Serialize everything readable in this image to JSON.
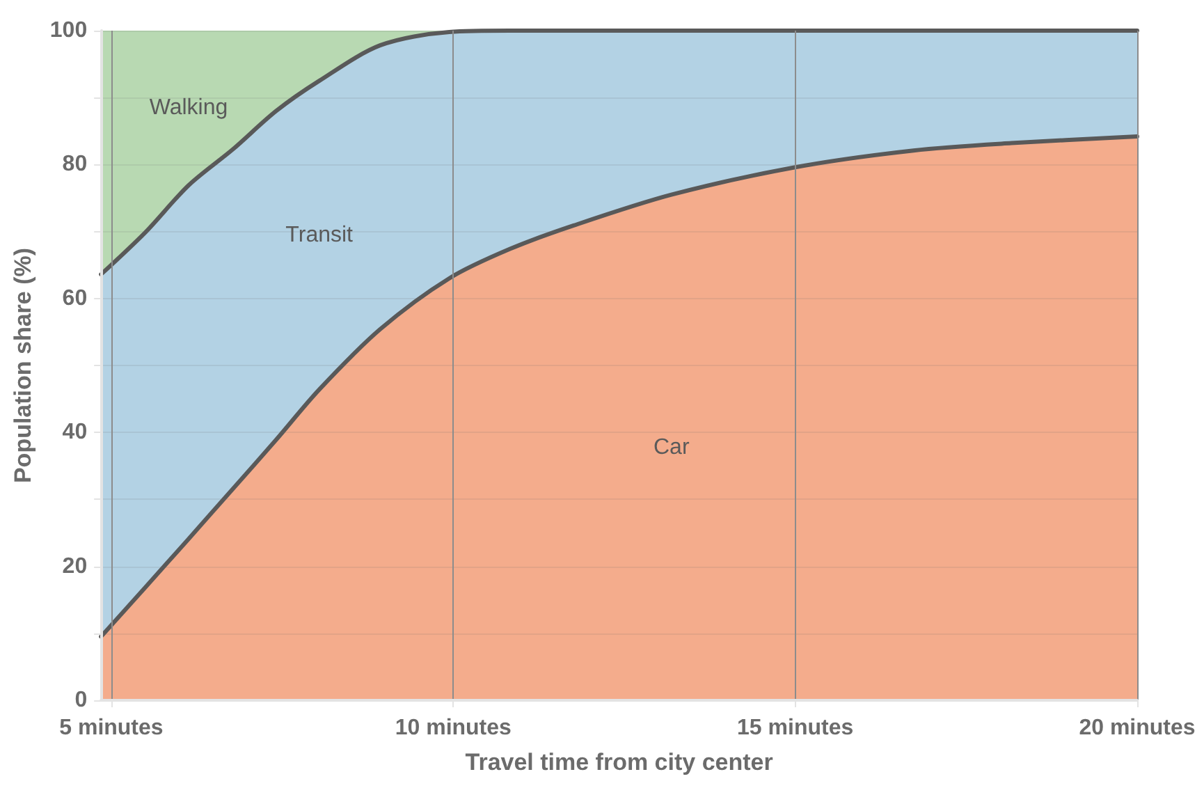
{
  "chart_data": {
    "type": "area",
    "stacked": true,
    "xlabel": "Travel time from city center",
    "ylabel": "Population share (%)",
    "x": [
      4.85,
      5.5,
      6.13,
      6.78,
      7.41,
      8.04,
      8.93,
      9.94,
      10.83,
      11.76,
      13.19,
      15,
      16.73,
      18.16,
      20
    ],
    "xlim": [
      4.85,
      20
    ],
    "xticks": [
      {
        "value": 5,
        "label": "5 minutes"
      },
      {
        "value": 10,
        "label": "10 minutes"
      },
      {
        "value": 15,
        "label": "15 minutes"
      },
      {
        "value": 20,
        "label": "20 minutes"
      }
    ],
    "ylim": [
      0,
      100
    ],
    "yticks": [
      0,
      {
        "value": 10,
        "label": null
      },
      20,
      {
        "value": 30,
        "label": null
      },
      40,
      {
        "value": 50,
        "label": null
      },
      60,
      {
        "value": 70,
        "label": null
      },
      80,
      {
        "value": 90,
        "label": null
      },
      100
    ],
    "grid": true,
    "series": [
      {
        "name": "Car",
        "color": "#f4ac8c",
        "values": [
          9.5,
          16.9,
          24.1,
          31.6,
          38.9,
          46.4,
          55.4,
          63,
          67.4,
          70.9,
          75.5,
          79.6,
          82.1,
          83.2,
          84.2
        ]
      },
      {
        "name": "Transit",
        "color": "#b3d2e4",
        "values": [
          54.1,
          53,
          52.8,
          50.7,
          49.1,
          46.1,
          42.4,
          36.8,
          32.6,
          29.1,
          24.5,
          20.4,
          17.9,
          16.8,
          15.8
        ]
      },
      {
        "name": "Walking",
        "color": "#b8d9b2",
        "values": [
          36.4,
          30.1,
          23.1,
          17.7,
          12,
          7.5,
          2.2,
          0.2,
          0,
          0,
          0,
          0,
          0,
          0,
          0
        ]
      }
    ]
  }
}
